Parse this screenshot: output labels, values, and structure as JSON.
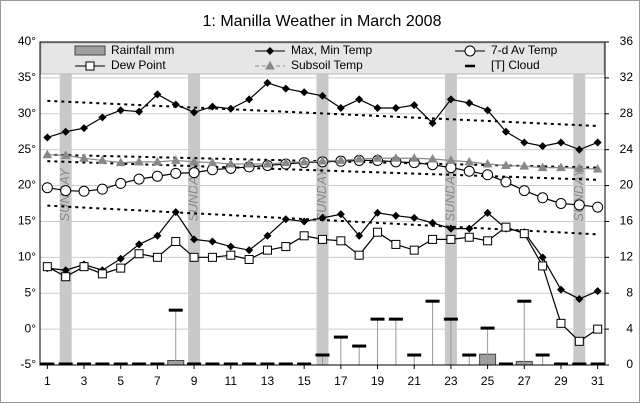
{
  "chart_data": {
    "type": "line",
    "title": "1: Manilla Weather in March 2008",
    "x": [
      1,
      2,
      3,
      4,
      5,
      6,
      7,
      8,
      9,
      10,
      11,
      12,
      13,
      14,
      15,
      16,
      17,
      18,
      19,
      20,
      21,
      22,
      23,
      24,
      25,
      26,
      27,
      28,
      29,
      30,
      31
    ],
    "xlim": [
      0.6,
      31.4
    ],
    "xticks": [
      1,
      3,
      5,
      7,
      9,
      11,
      13,
      15,
      17,
      19,
      21,
      23,
      25,
      27,
      29,
      31
    ],
    "ylim": [
      -5,
      40
    ],
    "yticks": [
      {
        "value": -5,
        "label": "-5°"
      },
      {
        "value": 0,
        "label": "0°"
      },
      {
        "value": 5,
        "label": "5°"
      },
      {
        "value": 10,
        "label": "10°"
      },
      {
        "value": 15,
        "label": "15°"
      },
      {
        "value": 20,
        "label": "20°"
      },
      {
        "value": 25,
        "label": "25°"
      },
      {
        "value": 30,
        "label": "30°"
      },
      {
        "value": 35,
        "label": "35°"
      },
      {
        "value": 40,
        "label": "40°"
      }
    ],
    "y2lim": [
      0,
      36
    ],
    "y2ticks": [
      0,
      4,
      8,
      12,
      16,
      20,
      24,
      28,
      32,
      36
    ],
    "grid": true,
    "sundays": {
      "x": [
        2,
        9,
        16,
        23,
        30
      ],
      "label": "SUNDAY"
    },
    "series": [
      {
        "name": "Rainfall mm",
        "type": "bar",
        "axis": "y2",
        "color": "#a0a0a0",
        "values": [
          0,
          0,
          0,
          0,
          0,
          0,
          0,
          0.5,
          0,
          0,
          0,
          0,
          0,
          0,
          0,
          0,
          0,
          0,
          0,
          0,
          0,
          0,
          0,
          0,
          1.2,
          0,
          0.4,
          0,
          0,
          0,
          0
        ]
      },
      {
        "name": "Max, Min Temp",
        "type": "line",
        "marker": "diamond",
        "color": "#000000",
        "values": [
          26.7,
          27.5,
          28,
          29.5,
          30.5,
          30.3,
          32.7,
          31.3,
          30.2,
          31,
          30.7,
          32,
          34.3,
          33.5,
          33,
          32.5,
          30.8,
          32,
          30.8,
          30.8,
          31.2,
          28.7,
          32,
          31.5,
          30.5,
          27.5,
          26,
          25.5,
          26,
          25,
          26
        ],
        "min_values": [
          8.5,
          8.2,
          9,
          8.2,
          9.8,
          11.8,
          13,
          16.3,
          12.5,
          12.2,
          11.5,
          11,
          13,
          15.3,
          15,
          15.5,
          16,
          13,
          16.2,
          15.8,
          15.5,
          14.8,
          14,
          14,
          16.2,
          14,
          13.5,
          10,
          5.5,
          4.2,
          5.3
        ]
      },
      {
        "name": "7-d Av Temp",
        "type": "line",
        "marker": "circle",
        "color": "#000000",
        "values": [
          19.7,
          19.3,
          19.2,
          19.5,
          20.3,
          20.9,
          21.3,
          21.7,
          21.8,
          22.2,
          22.4,
          22.6,
          22.8,
          23,
          23.2,
          23.3,
          23.4,
          23.5,
          23.5,
          23.3,
          23.2,
          22.9,
          22.5,
          22,
          21.5,
          20.5,
          19.3,
          18.3,
          17.5,
          17.3,
          17
        ]
      },
      {
        "name": "Dew Point",
        "type": "line",
        "marker": "square",
        "color": "#000000",
        "values": [
          8.7,
          7.3,
          8.7,
          7.7,
          8.5,
          10.5,
          10,
          12.2,
          10,
          10,
          10.3,
          9.7,
          11,
          11.5,
          13,
          12.5,
          12.3,
          10.3,
          13.5,
          11.8,
          11,
          12.5,
          12.5,
          12.8,
          12.3,
          14.2,
          13.3,
          8.8,
          0.8,
          -1.7,
          0
        ]
      },
      {
        "name": "Subsoil Temp",
        "type": "line",
        "marker": "triangle",
        "color": "#888888",
        "values": [
          24.3,
          24.2,
          23.8,
          23.5,
          23.2,
          23.3,
          23.3,
          23.5,
          23.3,
          23.2,
          23,
          23,
          23,
          23.2,
          23.3,
          23.4,
          23.5,
          23.7,
          23.8,
          23.8,
          23.8,
          23.7,
          23.5,
          23.3,
          23,
          22.8,
          22.7,
          22.5,
          22.5,
          22.4,
          22.3
        ]
      },
      {
        "name": "[T] Cloud",
        "type": "dash",
        "axis": "y2",
        "color": "#000000",
        "values": [
          0,
          0,
          0,
          0,
          0,
          0,
          0,
          6,
          0,
          0,
          0,
          0,
          0,
          0,
          0,
          1,
          3,
          2,
          5,
          5,
          1,
          7,
          5,
          1,
          4,
          0,
          7,
          1,
          0,
          0,
          0
        ]
      }
    ],
    "trend_lines": {
      "x": [
        1,
        31
      ],
      "lines": [
        [
          31.8,
          28.3
        ],
        [
          24.3,
          22.5
        ],
        [
          23.4,
          20.8
        ],
        [
          17.2,
          13.2
        ]
      ]
    }
  }
}
